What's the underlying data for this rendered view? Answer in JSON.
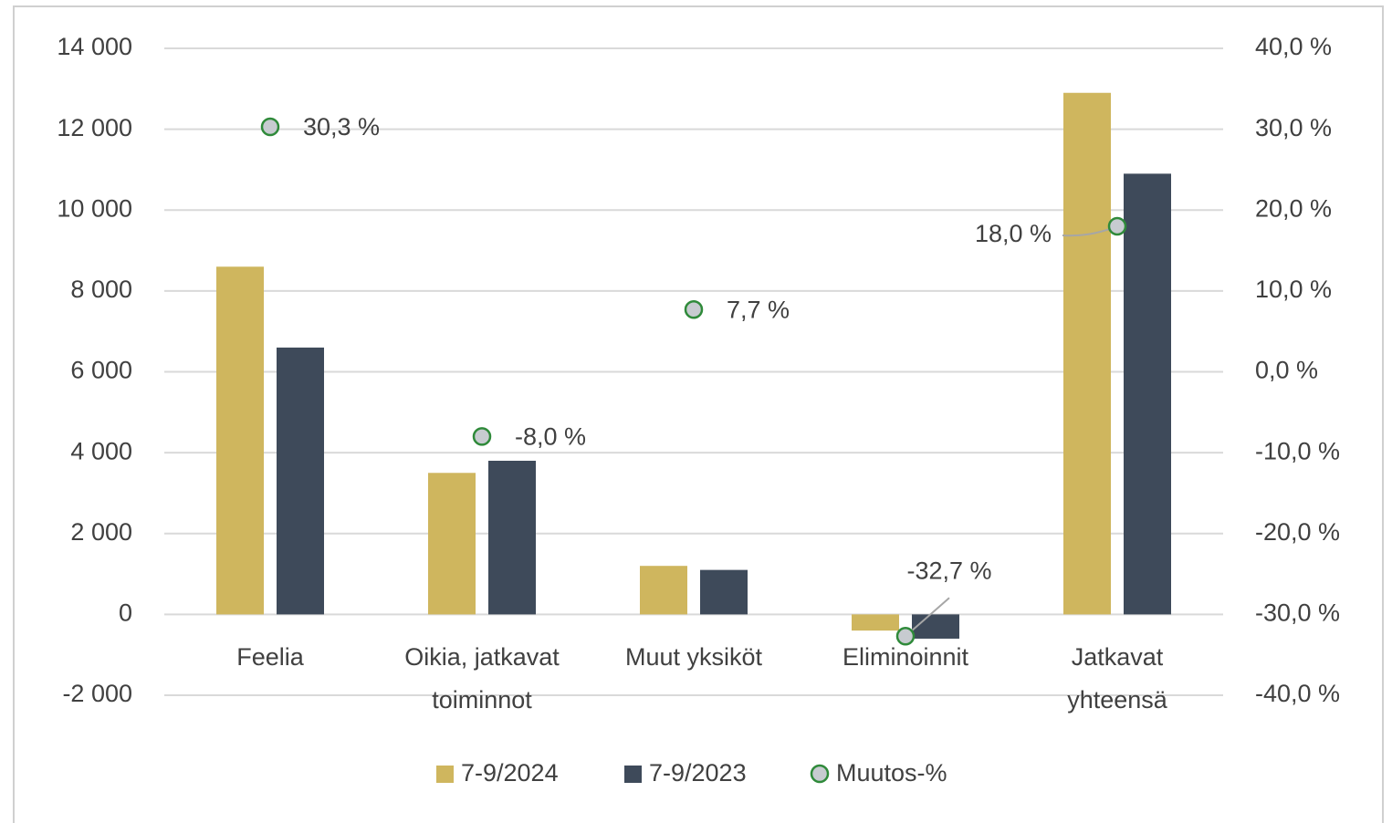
{
  "chart_data": {
    "type": "bar",
    "categories": [
      "Feelia",
      "Oikia, jatkavat toiminnot",
      "Muut yksiköt",
      "Eliminoinnit",
      "Jatkavat yhteensä"
    ],
    "series": [
      {
        "name": "7-9/2024",
        "type": "bar",
        "color": "#cfb65e",
        "values": [
          8600,
          3500,
          1200,
          -400,
          12900
        ]
      },
      {
        "name": "7-9/2023",
        "type": "bar",
        "color": "#3e4a5a",
        "values": [
          6600,
          3800,
          1100,
          -600,
          10900
        ]
      },
      {
        "name": "Muutos-%",
        "type": "scatter",
        "axis": "y2",
        "color": "#c7cbd0",
        "edgecolor": "#2f8a3a",
        "values": [
          30.3,
          -8.0,
          7.7,
          -32.7,
          18.0
        ],
        "value_labels": [
          "30,3 %",
          "-8,0 %",
          "7,7 %",
          "-32,7 %",
          "18,0 %"
        ]
      }
    ],
    "ylim": [
      -2000,
      14000
    ],
    "yticks": [
      {
        "value": -2000,
        "label": "-2 000"
      },
      0,
      {
        "value": 2000,
        "label": "2 000"
      },
      {
        "value": 4000,
        "label": "4 000"
      },
      {
        "value": 6000,
        "label": "6 000"
      },
      {
        "value": 8000,
        "label": "8 000"
      },
      {
        "value": 10000,
        "label": "10 000"
      },
      {
        "value": 12000,
        "label": "12 000"
      },
      {
        "value": 14000,
        "label": "14 000"
      }
    ],
    "y2lim": [
      -40,
      40
    ],
    "y2ticks": [
      {
        "value": -40,
        "label": "-40,0 %"
      },
      {
        "value": -30,
        "label": "-30,0 %"
      },
      {
        "value": -20,
        "label": "-20,0 %"
      },
      {
        "value": -10,
        "label": "-10,0 %"
      },
      {
        "value": 0,
        "label": "0,0 %"
      },
      {
        "value": 10,
        "label": "10,0 %"
      },
      {
        "value": 20,
        "label": "20,0 %"
      },
      {
        "value": 30,
        "label": "30,0 %"
      },
      {
        "value": 40,
        "label": "40,0 %"
      }
    ],
    "grid": true,
    "legend": "bottom"
  }
}
